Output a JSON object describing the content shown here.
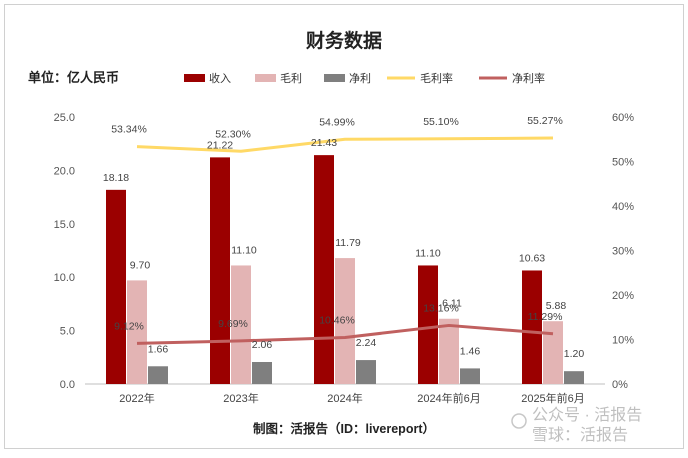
{
  "title": "财务数据",
  "unit_label": "单位：亿人民币",
  "credit": "制图：活报告（ID：livereport）",
  "watermark": "公众号 · 活报告 / 雪球：活报告",
  "watermark_lines": [
    "公众号 · 活报告",
    "雪球：活报告"
  ],
  "colors": {
    "revenue": "#9b0000",
    "gross_profit": "#e3b4b4",
    "net_profit": "#7f7f7f",
    "gross_margin": "#ffd966",
    "net_margin": "#c0605f",
    "grid": "#d9d9d9",
    "axis_text": "#555555"
  },
  "chart_data": {
    "type": "bar",
    "title": "财务数据",
    "xlabel": "",
    "ylabel": "亿人民币",
    "categories": [
      "2022年",
      "2023年",
      "2024年",
      "2024年前6月",
      "2025年前6月"
    ],
    "ylim": [
      0,
      25
    ],
    "yticks": [
      "0.0",
      "5.0",
      "10.0",
      "15.0",
      "20.0",
      "25.0"
    ],
    "y2lim": [
      0,
      60
    ],
    "y2ticks": [
      "0%",
      "10%",
      "20%",
      "30%",
      "40%",
      "50%",
      "60%"
    ],
    "grid": false,
    "legend_position": "top",
    "series": [
      {
        "name": "收入",
        "kind": "bar",
        "axis": "left",
        "color_key": "revenue",
        "values": [
          18.18,
          21.22,
          21.43,
          11.1,
          10.63
        ],
        "labels": [
          "18.18",
          "21.22",
          "21.43",
          "11.10",
          "10.63"
        ]
      },
      {
        "name": "毛利",
        "kind": "bar",
        "axis": "left",
        "color_key": "gross_profit",
        "values": [
          9.7,
          11.1,
          11.79,
          6.11,
          5.88
        ],
        "labels": [
          "9.70",
          "11.10",
          "11.79",
          "6.11",
          "5.88"
        ]
      },
      {
        "name": "净利",
        "kind": "bar",
        "axis": "left",
        "color_key": "net_profit",
        "values": [
          1.66,
          2.06,
          2.24,
          1.46,
          1.2
        ],
        "labels": [
          "1.66",
          "2.06",
          "2.24",
          "1.46",
          "1.20"
        ]
      },
      {
        "name": "毛利率",
        "kind": "line",
        "axis": "right",
        "color_key": "gross_margin",
        "values": [
          53.34,
          52.3,
          54.99,
          55.1,
          55.27
        ],
        "labels": [
          "53.34%",
          "52.30%",
          "54.99%",
          "55.10%",
          "55.27%"
        ]
      },
      {
        "name": "净利率",
        "kind": "line",
        "axis": "right",
        "color_key": "net_margin",
        "values": [
          9.12,
          9.69,
          10.46,
          13.16,
          11.29
        ],
        "labels": [
          "9.12%",
          "9.69%",
          "10.46%",
          "13.16%",
          "11.29%"
        ]
      }
    ]
  }
}
